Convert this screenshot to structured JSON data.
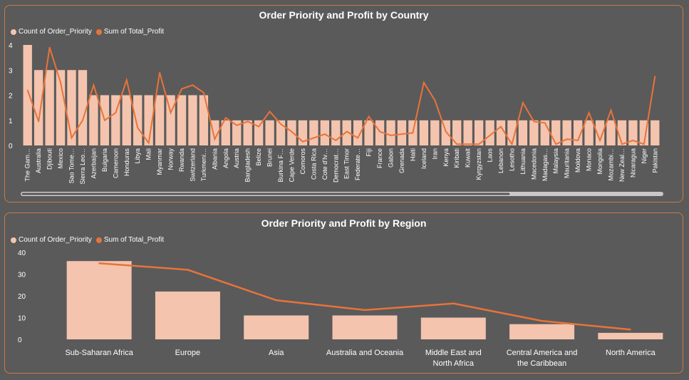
{
  "colors": {
    "bar": "#f4c4ae",
    "line": "#e8733a",
    "background": "#5a5a5a",
    "border": "#c97a4a",
    "text": "#ffffff"
  },
  "chart_data": [
    {
      "type": "bar+line",
      "title": "Order Priority and Profit by Country",
      "legend": [
        "Count of Order_Priority",
        "Sum of Total_Profit"
      ],
      "ylim": [
        0,
        4
      ],
      "yticks": [
        "0",
        "1",
        "2",
        "3",
        "4"
      ],
      "categories": [
        "The Gam…",
        "Australia",
        "Djibouti",
        "Mexico",
        "Sao Tome…",
        "Sierra Leo…",
        "Azerbaijan",
        "Bulgaria",
        "Cameroon",
        "Honduras",
        "Libya",
        "Mali",
        "Myanmar",
        "Norway",
        "Rwanda",
        "Switzerland",
        "Turkmeni…",
        "Albania",
        "Angola",
        "Austria",
        "Bangladesh",
        "Belize",
        "Brunei",
        "Burkina F…",
        "Cape Verde",
        "Comoros",
        "Costa Rica",
        "Cote d'Iv…",
        "Democrat…",
        "East Timor",
        "Federate…",
        "Fiji",
        "France",
        "Gabon",
        "Grenada",
        "Haiti",
        "Iceland",
        "Iran",
        "Kenya",
        "Kiribati",
        "Kuwait",
        "Kyrgyzstan",
        "Laos",
        "Lebanon",
        "Lesotho",
        "Lithuania",
        "Macedonia",
        "Madagas…",
        "Malaysia",
        "Mauritania",
        "Moldova",
        "Monaco",
        "Mongolia",
        "Mozambi…",
        "New Zeal…",
        "Nicaragua",
        "Niger",
        "Pakistan"
      ],
      "series": [
        {
          "name": "Count of Order_Priority",
          "kind": "bar",
          "values": [
            4,
            3,
            3,
            3,
            3,
            3,
            2,
            2,
            2,
            2,
            2,
            2,
            2,
            2,
            2,
            2,
            2,
            1,
            1,
            1,
            1,
            1,
            1,
            1,
            1,
            1,
            1,
            1,
            1,
            1,
            1,
            1,
            1,
            1,
            1,
            1,
            1,
            1,
            1,
            1,
            1,
            1,
            1,
            1,
            1,
            1,
            1,
            1,
            1,
            1,
            1,
            1,
            1,
            1,
            1,
            1,
            1,
            1
          ]
        },
        {
          "name": "Sum of Total_Profit",
          "kind": "line",
          "values": [
            2.2,
            0.95,
            3.9,
            2.5,
            0.3,
            1.0,
            2.4,
            1.0,
            1.3,
            2.6,
            0.7,
            0.1,
            2.9,
            1.3,
            2.25,
            2.4,
            2.1,
            0.25,
            1.1,
            0.8,
            0.95,
            0.75,
            1.35,
            0.85,
            0.55,
            0.15,
            0.3,
            0.45,
            0.2,
            0.55,
            0.3,
            1.15,
            0.55,
            0.4,
            0.45,
            0.5,
            2.5,
            1.8,
            0.55,
            0.05,
            0.05,
            0.05,
            0.4,
            0.75,
            0.05,
            1.7,
            0.95,
            0.9,
            0.05,
            0.25,
            0.2,
            1.3,
            0.2,
            1.4,
            0.05,
            0.2,
            0.05,
            2.75
          ]
        }
      ]
    },
    {
      "type": "bar+line",
      "title": "Order Priority and Profit by Region",
      "legend": [
        "Count of Order_Priority",
        "Sum of Total_Profit"
      ],
      "ylim": [
        0,
        40
      ],
      "yticks": [
        "0",
        "10",
        "20",
        "30",
        "40"
      ],
      "categories": [
        [
          "Sub-Saharan Africa"
        ],
        [
          "Europe"
        ],
        [
          "Asia"
        ],
        [
          "Australia and Oceania"
        ],
        [
          "Middle East and",
          "North Africa"
        ],
        [
          "Central America and",
          "the Caribbean"
        ],
        [
          "North America"
        ]
      ],
      "series": [
        {
          "name": "Count of Order_Priority",
          "kind": "bar",
          "values": [
            36,
            22,
            11,
            11,
            10,
            7,
            3
          ]
        },
        {
          "name": "Sum of Total_Profit",
          "kind": "line",
          "values": [
            35,
            32,
            18,
            13.5,
            16.5,
            8.5,
            4.5
          ]
        }
      ]
    }
  ]
}
